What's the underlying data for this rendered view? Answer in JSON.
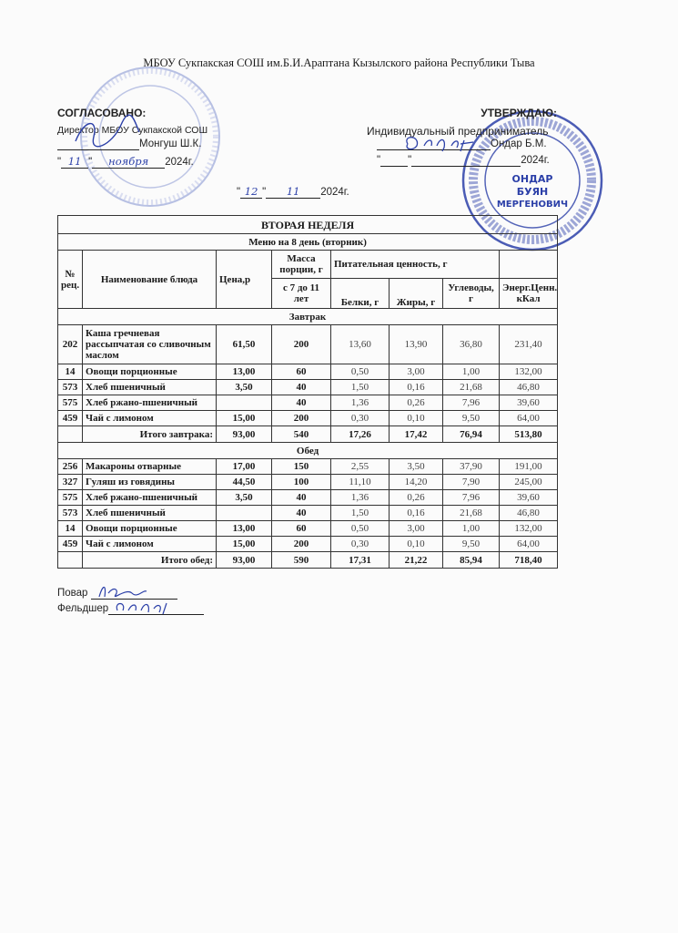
{
  "header": {
    "organization": "МБОУ Сукпакская СОШ им.Б.И.Араптана Кызылского района Республики Тыва",
    "left": {
      "title": "СОГЛАСОВАНО:",
      "position": "Директор МБОУ Сукпакской СОШ",
      "name": "Монгуш Ш.К.",
      "date_quote_open": "\"",
      "date_day": "11",
      "date_quote_close": "\"",
      "date_month": "ноября",
      "date_year": "2024г."
    },
    "right": {
      "title": "УТВЕРЖДАЮ:",
      "position": "Индивидуальный предприниматель",
      "name": "Ондар Б.М.",
      "date_quote_open": "\"",
      "date_quote_close": "\"",
      "date_year": "2024г."
    },
    "center_date": {
      "day": "12",
      "month": "11",
      "year": "2024г."
    }
  },
  "stamps": {
    "left": "МБОУ Сукпакская СОШ",
    "right_outer": "РОССИЙСКАЯ ФЕДЕРАЦИЯ РЕСПУБЛИКА ТЫВА СУТ-ХОЛЬСКИЙ РАЙОН",
    "right_inner": [
      "ОНДАР",
      "БУЯН",
      "МЕРГЕНОВИЧ"
    ]
  },
  "table": {
    "title": "ВТОРАЯ НЕДЕЛЯ",
    "subtitle": "Меню на 8 день (вторник)",
    "headers": {
      "num": "№ рец.",
      "name": "Наименование блюда",
      "price": "Цена,р",
      "mass": "Масса порции, г",
      "mass_sub": "с 7 до 11 лет",
      "nutrition": "Питательная ценность, г",
      "protein": "Белки, г",
      "fat": "Жиры, г",
      "carbs": "Углеводы, г",
      "energy": "Энерг.Ценн., кКал"
    },
    "sections": [
      {
        "title": "Завтрак",
        "rows": [
          {
            "num": "202",
            "name": "Каша гречневая рассыпчатая со сливочным маслом",
            "price": "61,50",
            "mass": "200",
            "protein": "13,60",
            "fat": "13,90",
            "carbs": "36,80",
            "energy": "231,40"
          },
          {
            "num": "14",
            "name": "Овощи порционные",
            "price": "13,00",
            "mass": "60",
            "protein": "0,50",
            "fat": "3,00",
            "carbs": "1,00",
            "energy": "132,00"
          },
          {
            "num": "573",
            "name": "Хлеб пшеничный",
            "price": "3,50",
            "mass": "40",
            "protein": "1,50",
            "fat": "0,16",
            "carbs": "21,68",
            "energy": "46,80"
          },
          {
            "num": "575",
            "name": "Хлеб ржано-пшеничный",
            "price": "",
            "mass": "40",
            "protein": "1,36",
            "fat": "0,26",
            "carbs": "7,96",
            "energy": "39,60"
          },
          {
            "num": "459",
            "name": "Чай с лимоном",
            "price": "15,00",
            "mass": "200",
            "protein": "0,30",
            "fat": "0,10",
            "carbs": "9,50",
            "energy": "64,00"
          }
        ],
        "total": {
          "label": "Итого завтрака:",
          "price": "93,00",
          "mass": "540",
          "protein": "17,26",
          "fat": "17,42",
          "carbs": "76,94",
          "energy": "513,80"
        }
      },
      {
        "title": "Обед",
        "rows": [
          {
            "num": "256",
            "name": "Макароны отварные",
            "price": "17,00",
            "mass": "150",
            "protein": "2,55",
            "fat": "3,50",
            "carbs": "37,90",
            "energy": "191,00"
          },
          {
            "num": "327",
            "name": "Гуляш из говядины",
            "price": "44,50",
            "mass": "100",
            "protein": "11,10",
            "fat": "14,20",
            "carbs": "7,90",
            "energy": "245,00"
          },
          {
            "num": "575",
            "name": "Хлеб ржано-пшеничный",
            "price": "3,50",
            "mass": "40",
            "protein": "1,36",
            "fat": "0,26",
            "carbs": "7,96",
            "energy": "39,60"
          },
          {
            "num": "573",
            "name": "Хлеб пшеничный",
            "price": "",
            "mass": "40",
            "protein": "1,50",
            "fat": "0,16",
            "carbs": "21,68",
            "energy": "46,80"
          },
          {
            "num": "14",
            "name": "Овощи порционные",
            "price": "13,00",
            "mass": "60",
            "protein": "0,50",
            "fat": "3,00",
            "carbs": "1,00",
            "energy": "132,00"
          },
          {
            "num": "459",
            "name": "Чай с лимоном",
            "price": "15,00",
            "mass": "200",
            "protein": "0,30",
            "fat": "0,10",
            "carbs": "9,50",
            "energy": "64,00"
          }
        ],
        "total": {
          "label": "Итого обед:",
          "price": "93,00",
          "mass": "590",
          "protein": "17,31",
          "fat": "21,22",
          "carbs": "85,94",
          "energy": "718,40"
        }
      }
    ]
  },
  "footer": {
    "cook_label": "Повар",
    "medic_label": "Фельдшер"
  },
  "colors": {
    "ink": "#1a1a1a",
    "stamp": "#2b3fa8"
  }
}
